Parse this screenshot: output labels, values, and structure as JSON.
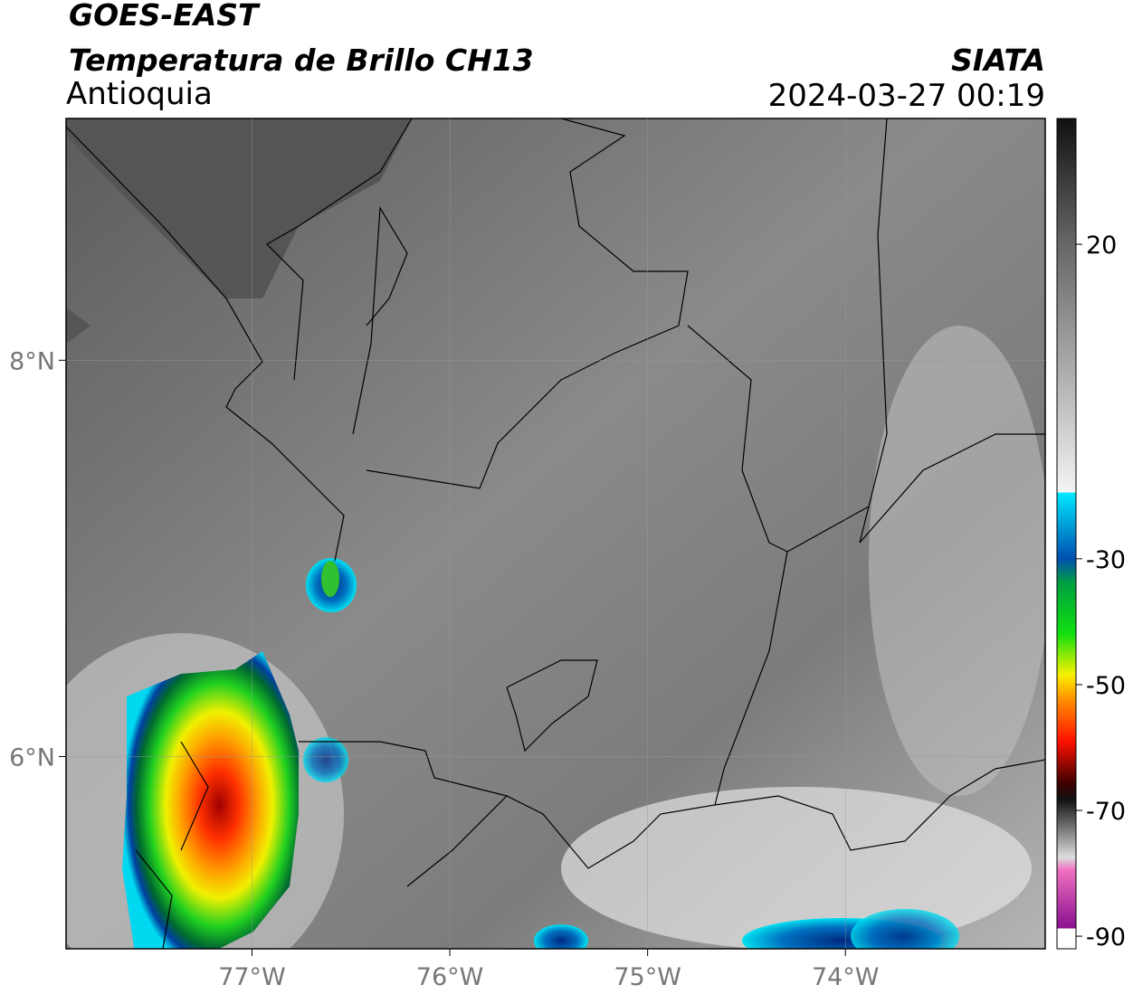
{
  "header": {
    "title": "GOES-EAST",
    "subtitle": "Temperatura de Brillo CH13",
    "region": "Antioquia",
    "source": "SIATA",
    "datetime": "2024-03-27 00:19"
  },
  "map": {
    "xlim": [
      -77.94,
      -72.99
    ],
    "ylim": [
      5.03,
      9.22
    ],
    "xticks": [
      {
        "value": -77,
        "label": "77°W"
      },
      {
        "value": -76,
        "label": "76°W"
      },
      {
        "value": -75,
        "label": "75°W"
      },
      {
        "value": -74,
        "label": "74°W"
      }
    ],
    "yticks": [
      {
        "value": 6,
        "label": "6°N"
      },
      {
        "value": 8,
        "label": "8°N"
      }
    ],
    "grid": true
  },
  "colorbar": {
    "lim": [
      -92,
      40
    ],
    "ticks": [
      20,
      -30,
      -50,
      -70,
      -90
    ]
  }
}
